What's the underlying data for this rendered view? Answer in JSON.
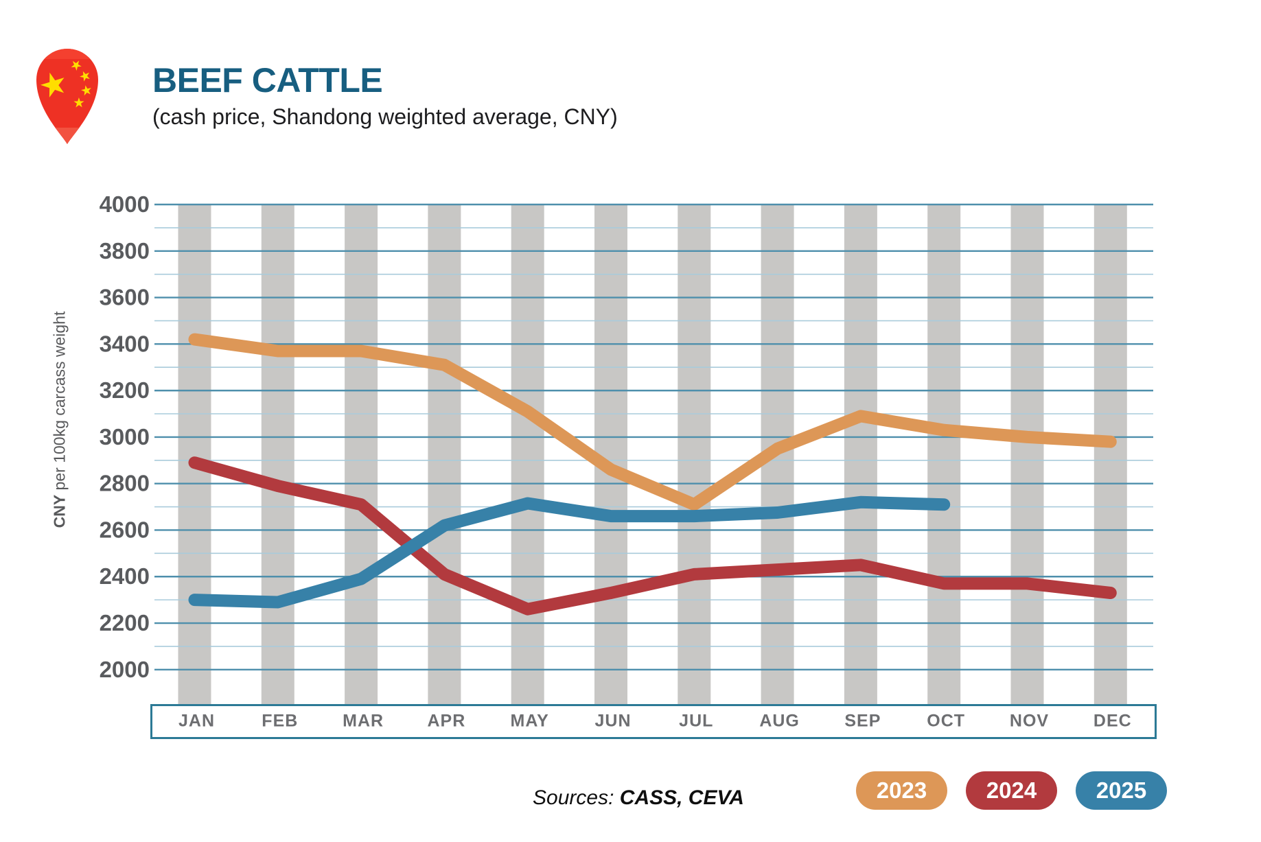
{
  "header": {
    "title": "BEEF CATTLE",
    "subtitle": "(cash price, Shandong weighted average, CNY)"
  },
  "y_axis": {
    "label_bold": "CNY",
    "label_rest": " per 100kg carcass weight"
  },
  "sources": {
    "prefix": "Sources: ",
    "names": "CASS, CEVA"
  },
  "legend": [
    {
      "label": "2023",
      "color": "#DD9757"
    },
    {
      "label": "2024",
      "color": "#B23A3E"
    },
    {
      "label": "2025",
      "color": "#3781A8"
    }
  ],
  "colors": {
    "title": "#175E80",
    "major_grid": "#4E8FAC",
    "minor_grid": "#A9CBDB",
    "month_band": "#C8C7C5",
    "tick_text": "#595B5E",
    "month_text": "#6D6E71",
    "box_border": "#2C7A96",
    "pin_red": "#EE3124",
    "star_yellow": "#FFDE00"
  },
  "chart_data": {
    "type": "line",
    "title": "BEEF CATTLE (cash price, Shandong weighted average, CNY)",
    "ylabel": "CNY per 100kg carcass weight",
    "xlabel": "",
    "categories": [
      "JAN",
      "FEB",
      "MAR",
      "APR",
      "MAY",
      "JUN",
      "JUL",
      "AUG",
      "SEP",
      "OCT",
      "NOV",
      "DEC"
    ],
    "ylim": [
      2000,
      4000
    ],
    "ytick_step": 200,
    "minor_grid_step": 100,
    "grid": true,
    "legend_position": "bottom-right",
    "series": [
      {
        "name": "2023",
        "color": "#DD9757",
        "values": [
          3420,
          3370,
          3370,
          3310,
          3110,
          2860,
          2710,
          2950,
          3090,
          3030,
          3000,
          2980
        ]
      },
      {
        "name": "2024",
        "color": "#B23A3E",
        "values": [
          2890,
          2790,
          2710,
          2410,
          2260,
          2330,
          2410,
          2430,
          2450,
          2370,
          2370,
          2330
        ]
      },
      {
        "name": "2025",
        "color": "#3781A8",
        "values": [
          2300,
          2290,
          2390,
          2620,
          2715,
          2660,
          2660,
          2675,
          2720,
          2710,
          null,
          null
        ]
      }
    ]
  }
}
